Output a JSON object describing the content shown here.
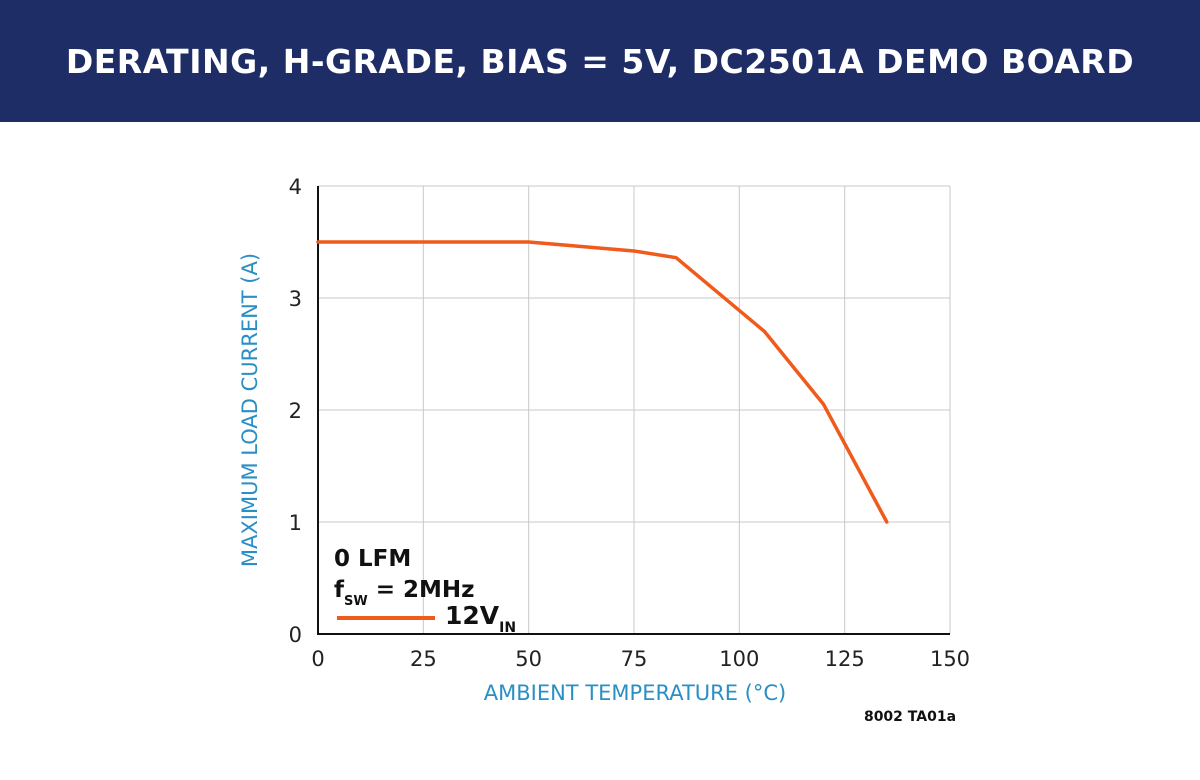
{
  "header": {
    "title": "DERATING, H-GRADE, BIAS = 5V, DC2501A DEMO BOARD"
  },
  "figure_id": "8002 TA01a",
  "colors": {
    "banner": "#1f2d66",
    "series": "#f05a1a",
    "axis_label": "#2a8fc5",
    "grid": "#c8c8c8"
  },
  "chart_data": {
    "type": "line",
    "title": "DERATING, H-GRADE, BIAS = 5V, DC2501A DEMO BOARD",
    "xlabel": "AMBIENT TEMPERATURE (°C)",
    "ylabel": "MAXIMUM LOAD CURRENT (A)",
    "xlim": [
      0,
      150
    ],
    "ylim": [
      0,
      4
    ],
    "xticks": [
      "0",
      "25",
      "50",
      "75",
      "100",
      "125",
      "150"
    ],
    "yticks": [
      "0",
      "1",
      "2",
      "3",
      "4"
    ],
    "grid": true,
    "annotations": {
      "line1": "0 LFM",
      "line2_main": "f",
      "line2_sub": "SW",
      "line2_rest": " = 2MHz"
    },
    "legend": {
      "position": "bottom-left",
      "label_main": "12V",
      "label_sub": "IN"
    },
    "series": [
      {
        "name": "12VIN",
        "x": [
          0,
          50,
          75,
          85,
          106,
          120,
          135
        ],
        "y": [
          3.5,
          3.5,
          3.42,
          3.36,
          2.7,
          2.05,
          1.0
        ]
      }
    ]
  }
}
